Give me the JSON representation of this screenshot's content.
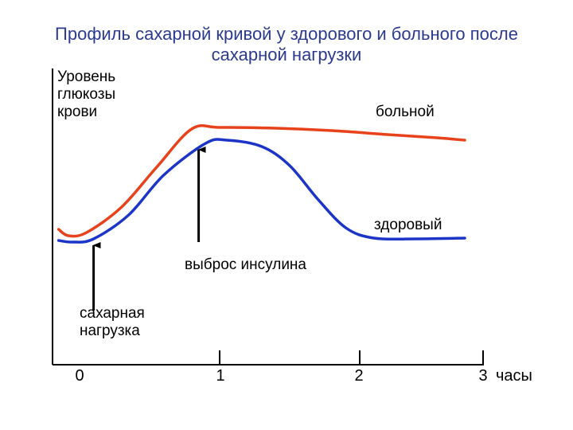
{
  "chart_data": {
    "type": "line",
    "title_lines": [
      "Профиль сахарной кривой у здорового и больного после",
      "сахарной нагрузки"
    ],
    "ylabel_lines": [
      "Уровень",
      "глюкозы",
      "крови"
    ],
    "x_ticks": [
      "0",
      "1",
      "2",
      "3"
    ],
    "x_unit": "часы",
    "xlim": [
      -0.15,
      3
    ],
    "ylim": [
      0,
      10
    ],
    "series": [
      {
        "name": "больной",
        "color": "#e8421c",
        "points": [
          [
            -0.15,
            2.6
          ],
          [
            -0.08,
            2.2
          ],
          [
            0.05,
            2.4
          ],
          [
            0.3,
            4.0
          ],
          [
            0.55,
            6.5
          ],
          [
            0.8,
            8.9
          ],
          [
            1.0,
            9.0
          ],
          [
            1.4,
            8.95
          ],
          [
            1.8,
            8.8
          ],
          [
            2.2,
            8.55
          ],
          [
            2.55,
            8.35
          ],
          [
            2.75,
            8.2
          ]
        ]
      },
      {
        "name": "здоровый",
        "color": "#1c35c8",
        "points": [
          [
            -0.15,
            1.9
          ],
          [
            -0.05,
            1.8
          ],
          [
            0.1,
            2.0
          ],
          [
            0.35,
            3.5
          ],
          [
            0.6,
            6.0
          ],
          [
            0.9,
            8.0
          ],
          [
            1.05,
            8.2
          ],
          [
            1.3,
            7.8
          ],
          [
            1.5,
            6.6
          ],
          [
            1.7,
            4.5
          ],
          [
            1.9,
            2.7
          ],
          [
            2.1,
            2.05
          ],
          [
            2.4,
            2.0
          ],
          [
            2.75,
            2.05
          ]
        ]
      }
    ],
    "annotations": [
      {
        "text_lines": [
          "сахарная",
          "нагрузка"
        ],
        "arrow_from": [
          0.1,
          -2.5
        ],
        "arrow_to": [
          0.1,
          1.6
        ]
      },
      {
        "text_lines": [
          "выброс инсулина"
        ],
        "arrow_from": [
          0.85,
          1.8
        ],
        "arrow_to": [
          0.85,
          7.6
        ]
      }
    ],
    "grid": false,
    "legend": "inline labels"
  }
}
